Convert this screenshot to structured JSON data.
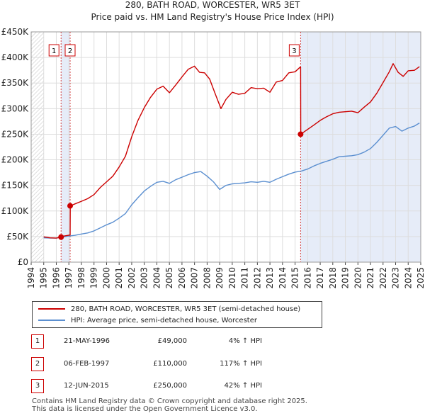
{
  "chart_data": {
    "type": "line",
    "title": "280, BATH ROAD, WORCESTER, WR5 3ET",
    "subtitle": "Price paid vs. HM Land Registry's House Price Index (HPI)",
    "xlim": [
      1994,
      2025
    ],
    "ylim": [
      0,
      450000
    ],
    "y_ticks": [
      0,
      50000,
      100000,
      150000,
      200000,
      250000,
      300000,
      350000,
      400000,
      450000
    ],
    "y_tick_labels": [
      "£0",
      "£50K",
      "£100K",
      "£150K",
      "£200K",
      "£250K",
      "£300K",
      "£350K",
      "£400K",
      "£450K"
    ],
    "x_ticks": [
      "1994",
      "1995",
      "1996",
      "1997",
      "1998",
      "1999",
      "2000",
      "2001",
      "2002",
      "2003",
      "2004",
      "2005",
      "2006",
      "2007",
      "2008",
      "2009",
      "2010",
      "2011",
      "2012",
      "2013",
      "2014",
      "2015",
      "2016",
      "2017",
      "2018",
      "2019",
      "2020",
      "2021",
      "2022",
      "2023",
      "2024",
      "2025"
    ],
    "hpi_start": 1995.0,
    "hpi_end": 2025.0,
    "grid": true,
    "series": [
      {
        "name": "280, BATH ROAD, WORCESTER, WR5 3ET (semi-detached house)",
        "color": "#cc0000",
        "x": [
          1995.0,
          1995.5,
          1996.0,
          1996.38,
          1996.6,
          1997.1,
          1997.11,
          1997.5,
          1998.0,
          1998.5,
          1999.0,
          1999.5,
          2000.0,
          2000.5,
          2001.0,
          2001.5,
          2002.0,
          2002.5,
          2003.0,
          2003.5,
          2004.0,
          2004.5,
          2005.0,
          2005.5,
          2006.0,
          2006.5,
          2007.0,
          2007.4,
          2007.8,
          2008.2,
          2008.6,
          2009.1,
          2009.5,
          2010.0,
          2010.5,
          2011.0,
          2011.5,
          2012.0,
          2012.5,
          2013.0,
          2013.5,
          2014.0,
          2014.5,
          2015.0,
          2015.4,
          2015.44,
          2015.45,
          2015.8,
          2016.5,
          2017.0,
          2017.5,
          2018.0,
          2018.5,
          2019.0,
          2019.5,
          2020.0,
          2020.5,
          2021.0,
          2021.5,
          2022.0,
          2022.5,
          2022.8,
          2023.2,
          2023.6,
          2024.0,
          2024.5,
          2024.9
        ],
        "values": [
          49500,
          47500,
          47000,
          49000,
          51000,
          53000,
          110000,
          114000,
          119000,
          124000,
          132000,
          146000,
          157000,
          168000,
          186000,
          207000,
          245000,
          277000,
          302000,
          322000,
          338000,
          344000,
          331000,
          346000,
          362000,
          377000,
          383000,
          371000,
          370000,
          358000,
          332000,
          300000,
          318000,
          332000,
          328000,
          330000,
          341000,
          339000,
          340000,
          332000,
          352000,
          355000,
          370000,
          372000,
          381000,
          381000,
          250000,
          256000,
          268000,
          277000,
          284000,
          290000,
          293000,
          294000,
          295000,
          292000,
          303000,
          313000,
          330000,
          351000,
          372000,
          388000,
          371000,
          363000,
          374000,
          375000,
          382000
        ]
      },
      {
        "name": "HPI: Average price, semi-detached house, Worcester",
        "color": "#5b8fd0",
        "x": [
          1995.0,
          1995.5,
          1996.0,
          1996.5,
          1997.0,
          1997.5,
          1998.0,
          1998.5,
          1999.0,
          1999.5,
          2000.0,
          2000.5,
          2001.0,
          2001.5,
          2002.0,
          2002.5,
          2003.0,
          2003.5,
          2004.0,
          2004.5,
          2005.0,
          2005.5,
          2006.0,
          2006.5,
          2007.0,
          2007.5,
          2008.0,
          2008.5,
          2009.0,
          2009.5,
          2010.0,
          2010.5,
          2011.0,
          2011.5,
          2012.0,
          2012.5,
          2013.0,
          2013.5,
          2014.0,
          2014.5,
          2015.0,
          2015.5,
          2016.0,
          2016.5,
          2017.0,
          2017.5,
          2018.0,
          2018.5,
          2019.0,
          2019.5,
          2020.0,
          2020.5,
          2021.0,
          2021.5,
          2022.0,
          2022.5,
          2023.0,
          2023.5,
          2024.0,
          2024.5,
          2024.9
        ],
        "values": [
          47500,
          47000,
          47000,
          49000,
          51000,
          52500,
          55000,
          57000,
          61000,
          67000,
          73000,
          78000,
          86000,
          95000,
          112000,
          126000,
          139000,
          148000,
          156000,
          158000,
          154000,
          161000,
          166000,
          171000,
          175000,
          177000,
          168000,
          157000,
          142000,
          150000,
          153000,
          154000,
          155000,
          157000,
          156000,
          158000,
          156000,
          162000,
          167000,
          172000,
          176000,
          178000,
          182000,
          188000,
          193000,
          197000,
          201000,
          206000,
          207000,
          208000,
          210000,
          215000,
          222000,
          234000,
          248000,
          262000,
          265000,
          256000,
          262000,
          266000,
          272000
        ]
      }
    ],
    "sales": [
      {
        "num": "1",
        "x": 1996.38,
        "value": 49000
      },
      {
        "num": "2",
        "x": 1997.1,
        "value": 110000
      },
      {
        "num": "3",
        "x": 2015.44,
        "value": 250000
      }
    ]
  },
  "legend": {
    "property_label": "280, BATH ROAD, WORCESTER, WR5 3ET (semi-detached house)",
    "hpi_label": "HPI: Average price, semi-detached house, Worcester"
  },
  "sales_table": [
    {
      "num": "1",
      "date": "21-MAY-1996",
      "price": "£49,000",
      "hpi": "4% ↑ HPI"
    },
    {
      "num": "2",
      "date": "06-FEB-1997",
      "price": "£110,000",
      "hpi": "117% ↑ HPI"
    },
    {
      "num": "3",
      "date": "12-JUN-2015",
      "price": "£250,000",
      "hpi": "42% ↑ HPI"
    }
  ],
  "footer": {
    "line1": "Contains HM Land Registry data © Crown copyright and database right 2025.",
    "line2": "This data is licensed under the Open Government Licence v3.0."
  },
  "colors": {
    "property": "#cc0000",
    "hpi": "#5b8fd0",
    "shade": "#e6ecf8",
    "hatch": "#cccccc",
    "grid": "#dddddd"
  }
}
